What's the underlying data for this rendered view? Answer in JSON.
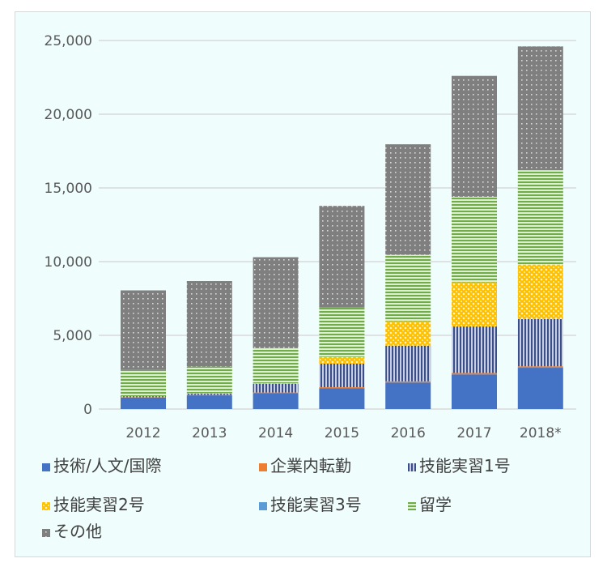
{
  "chart_data": {
    "type": "bar",
    "stacked": true,
    "categories": [
      "2012",
      "2013",
      "2014",
      "2015",
      "2016",
      "2017",
      "2018*"
    ],
    "ylim": [
      0,
      25000
    ],
    "yticks": [
      "0",
      "5,000",
      "10,000",
      "15,000",
      "20,000",
      "25,000"
    ],
    "ytick_values": [
      0,
      5000,
      10000,
      15000,
      20000,
      25000
    ],
    "grid": true,
    "legend_position": "bottom",
    "series": [
      {
        "name": "技術/人文/国際",
        "color": "#4472c4",
        "pattern": "solid",
        "values": [
          780,
          930,
          1070,
          1400,
          1800,
          2350,
          2800
        ]
      },
      {
        "name": "企業内転勤",
        "color": "#ed7d31",
        "pattern": "solid",
        "values": [
          20,
          30,
          50,
          80,
          80,
          100,
          100
        ]
      },
      {
        "name": "技能実習1号",
        "color": "#3b4e8c",
        "pattern": "vertical-lines",
        "values": [
          70,
          80,
          600,
          1600,
          2420,
          3150,
          3200
        ]
      },
      {
        "name": "技能実習2号",
        "color": "#ffc000",
        "pattern": "lattice",
        "values": [
          0,
          40,
          40,
          450,
          1660,
          3000,
          3700
        ]
      },
      {
        "name": "技能実習3号",
        "color": "#5b9bd5",
        "pattern": "solid",
        "values": [
          0,
          0,
          0,
          0,
          0,
          0,
          0
        ]
      },
      {
        "name": "留学",
        "color": "#70ad47",
        "pattern": "horizontal-lines",
        "values": [
          1780,
          1800,
          2370,
          3350,
          4500,
          5800,
          6400
        ]
      },
      {
        "name": "その他",
        "color": "#7f7f7f",
        "pattern": "dots",
        "values": [
          5400,
          5800,
          6170,
          6900,
          7500,
          8200,
          8400
        ]
      }
    ]
  }
}
